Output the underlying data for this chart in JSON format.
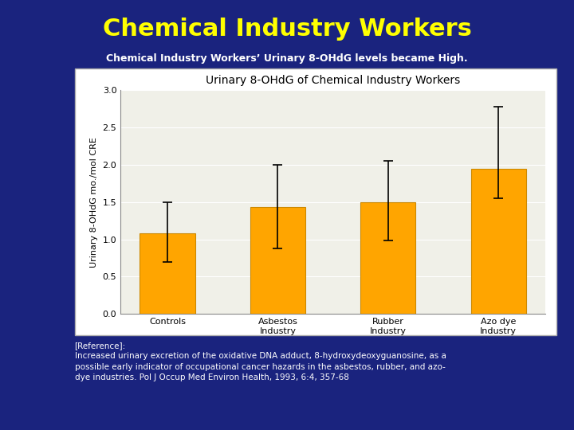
{
  "title_main": "Chemical Industry Workers",
  "title_sub": "Chemical Industry Workers’ Urinary 8-OHdG levels became High.",
  "chart_title": "Urinary 8-OHdG of Chemical Industry Workers",
  "categories": [
    "Controls",
    "Asbestos\nIndustry",
    "Rubber\nIndustry",
    "Azo dye\nIndustry"
  ],
  "values": [
    1.08,
    1.43,
    1.5,
    1.95
  ],
  "errors_upper": [
    0.42,
    0.57,
    0.55,
    0.83
  ],
  "errors_lower": [
    0.38,
    0.55,
    0.52,
    0.4
  ],
  "bar_color": "#FFA500",
  "bar_edge_color": "#CC8800",
  "ylabel": "Urinary 8-OHdG mo./mol CRE",
  "ylim": [
    0.0,
    3.0
  ],
  "yticks": [
    0.0,
    0.5,
    1.0,
    1.5,
    2.0,
    2.5,
    3.0
  ],
  "background_color": "#1a237e",
  "chart_bg_color": "#f0f0e8",
  "title_color": "#ffff00",
  "subtitle_color": "#ffffff",
  "reference_text": "[Reference]:\nIncreased urinary excretion of the oxidative DNA adduct, 8-hydroxydeoxyguanosine, as a\npossible early indicator of occupational cancer hazards in the asbestos, rubber, and azo-\ndye industries. Pol J Occup Med Environ Health, 1993, 6:4, 357-68",
  "reference_color": "#ffffff",
  "title_fontsize": 22,
  "subtitle_fontsize": 9,
  "chart_title_fontsize": 10,
  "tick_fontsize": 8,
  "ylabel_fontsize": 8
}
